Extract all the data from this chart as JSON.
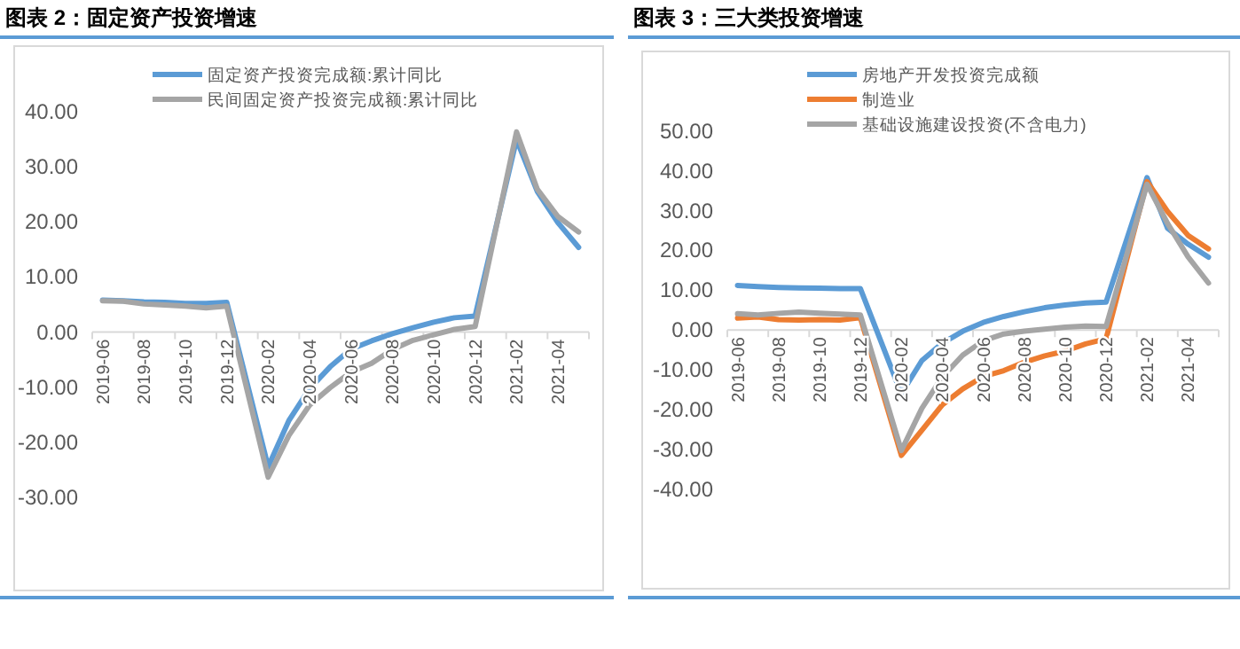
{
  "chart_data": [
    {
      "type": "line",
      "title": "图表 2：固定资产投资增速",
      "legend": "top",
      "grid": false,
      "categories": [
        "2019-06",
        null,
        "2019-08",
        null,
        "2019-10",
        null,
        "2019-12",
        null,
        "2020-02",
        null,
        "2020-04",
        null,
        "2020-06",
        null,
        "2020-08",
        null,
        "2020-10",
        null,
        "2020-12",
        null,
        "2021-02",
        null,
        "2021-04",
        null
      ],
      "ylim": [
        -47,
        52
      ],
      "yticks": [
        {
          "value": -30,
          "label": "-30.00"
        },
        {
          "value": -20,
          "label": "-20.00"
        },
        {
          "value": -10,
          "label": "-10.00"
        },
        {
          "value": 0,
          "label": "0.00"
        },
        {
          "value": 10,
          "label": "10.00"
        },
        {
          "value": 20,
          "label": "20.00"
        },
        {
          "value": 30,
          "label": "30.00"
        },
        {
          "value": 40,
          "label": "40.00"
        }
      ],
      "series": [
        {
          "name": "固定资产投资完成额:累计同比",
          "color": "#5b9bd5",
          "values": [
            5.8,
            5.7,
            5.5,
            5.4,
            5.2,
            5.2,
            5.4,
            null,
            -24.5,
            -16.1,
            -10.3,
            -6.3,
            -3.1,
            -1.6,
            -0.3,
            0.8,
            1.8,
            2.6,
            2.9,
            null,
            35.0,
            25.6,
            19.9,
            15.4
          ]
        },
        {
          "name": "民间固定资产投资完成额:累计同比",
          "color": "#a5a5a5",
          "values": [
            5.7,
            5.6,
            5.1,
            4.9,
            4.7,
            4.4,
            4.7,
            null,
            -26.4,
            -18.8,
            -13.3,
            -10.1,
            -7.3,
            -5.7,
            -3.2,
            -1.5,
            -0.5,
            0.5,
            1.0,
            null,
            36.4,
            26.0,
            21.0,
            18.2
          ]
        }
      ]
    },
    {
      "type": "line",
      "title": "图表 3：三大类投资增速",
      "legend": "top",
      "grid": false,
      "categories": [
        "2019-06",
        null,
        "2019-08",
        null,
        "2019-10",
        null,
        "2019-12",
        null,
        "2020-02",
        null,
        "2020-04",
        null,
        "2020-06",
        null,
        "2020-08",
        null,
        "2020-10",
        null,
        "2020-12",
        null,
        "2021-02",
        null,
        "2021-04",
        null
      ],
      "ylim": [
        -65,
        70
      ],
      "yticks": [
        {
          "value": -40,
          "label": "-40.00"
        },
        {
          "value": -30,
          "label": "-30.00"
        },
        {
          "value": -20,
          "label": "-20.00"
        },
        {
          "value": -10,
          "label": "-10.00"
        },
        {
          "value": 0,
          "label": "0.00"
        },
        {
          "value": 10,
          "label": "10.00"
        },
        {
          "value": 20,
          "label": "20.00"
        },
        {
          "value": 30,
          "label": "30.00"
        },
        {
          "value": 40,
          "label": "40.00"
        },
        {
          "value": 50,
          "label": "50.00"
        }
      ],
      "series": [
        {
          "name": "房地产开发投资完成额",
          "color": "#5b9bd5",
          "values": [
            11.2,
            10.9,
            10.7,
            10.6,
            10.5,
            10.4,
            10.4,
            null,
            -16.0,
            -7.7,
            -3.3,
            -0.3,
            1.9,
            3.4,
            4.6,
            5.6,
            6.3,
            6.8,
            7.0,
            null,
            38.3,
            25.6,
            21.6,
            18.3
          ]
        },
        {
          "name": "制造业",
          "color": "#ed7d31",
          "values": [
            3.0,
            3.3,
            2.6,
            2.5,
            2.6,
            2.5,
            3.1,
            null,
            -31.5,
            -25.2,
            -18.8,
            -14.8,
            -11.7,
            -10.2,
            -8.1,
            -6.5,
            -5.3,
            -3.5,
            -2.2,
            null,
            37.3,
            29.8,
            23.8,
            20.4
          ]
        },
        {
          "name": "基础设施建设投资(不含电力)",
          "color": "#a5a5a5",
          "values": [
            4.1,
            3.8,
            4.2,
            4.5,
            4.2,
            4.0,
            3.8,
            null,
            -30.3,
            -19.7,
            -11.8,
            -6.3,
            -2.7,
            -1.0,
            -0.3,
            0.2,
            0.7,
            1.0,
            0.9,
            null,
            36.6,
            26.8,
            18.4,
            11.8
          ]
        }
      ]
    }
  ]
}
